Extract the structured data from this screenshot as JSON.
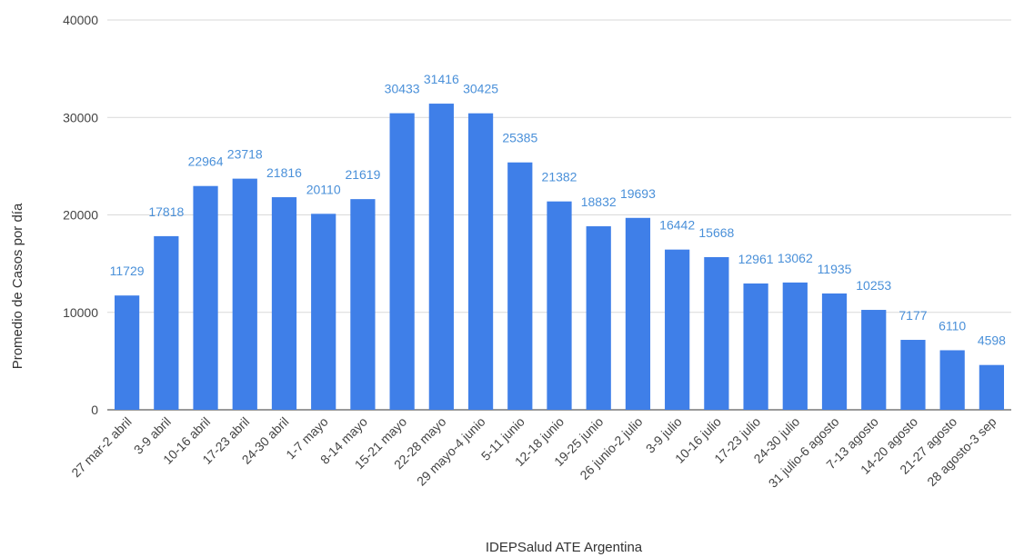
{
  "chart_data": {
    "type": "bar",
    "title": "",
    "xlabel": "IDEPSalud ATE Argentina",
    "ylabel": "Promedio de Casos por día",
    "ylim": [
      0,
      40000
    ],
    "yticks": [
      "0",
      "10000",
      "20000",
      "30000",
      "40000"
    ],
    "ytick_values": [
      0,
      10000,
      20000,
      30000,
      40000
    ],
    "grid": true,
    "legend": "none",
    "bar_color": "#3f7fe8",
    "label_color": "#4a90d9",
    "categories": [
      "27 mar-2 abril",
      "3-9 abril",
      "10-16 abril",
      "17-23 abril",
      "24-30 abril",
      "1-7 mayo",
      "8-14 mayo",
      "15-21 mayo",
      "22-28 mayo",
      "29 mayo-4 junio",
      "5-11 junio",
      "12-18 junio",
      "19-25 junio",
      "26 junio-2 julio",
      "3-9 julio",
      "10-16 julio",
      "17-23 julio",
      "24-30 julio",
      "31 julio-6 agosto",
      "7-13 agosto",
      "14-20 agosto",
      "21-27 agosto",
      "28 agosto-3 sep"
    ],
    "values": [
      11729,
      17818,
      22964,
      23718,
      21816,
      20110,
      21619,
      30433,
      31416,
      30425,
      25385,
      21382,
      18832,
      19693,
      16442,
      15668,
      12961,
      13062,
      11935,
      10253,
      7177,
      6110,
      4598
    ],
    "value_labels": [
      "11729",
      "17818",
      "22964",
      "23718",
      "21816",
      "20110",
      "21619",
      "30433",
      "31416",
      "30425",
      "25385",
      "21382",
      "18832",
      "19693",
      "16442",
      "15668",
      "12961",
      "13062",
      "11935",
      "10253",
      "7177",
      "6110",
      "4598"
    ]
  }
}
